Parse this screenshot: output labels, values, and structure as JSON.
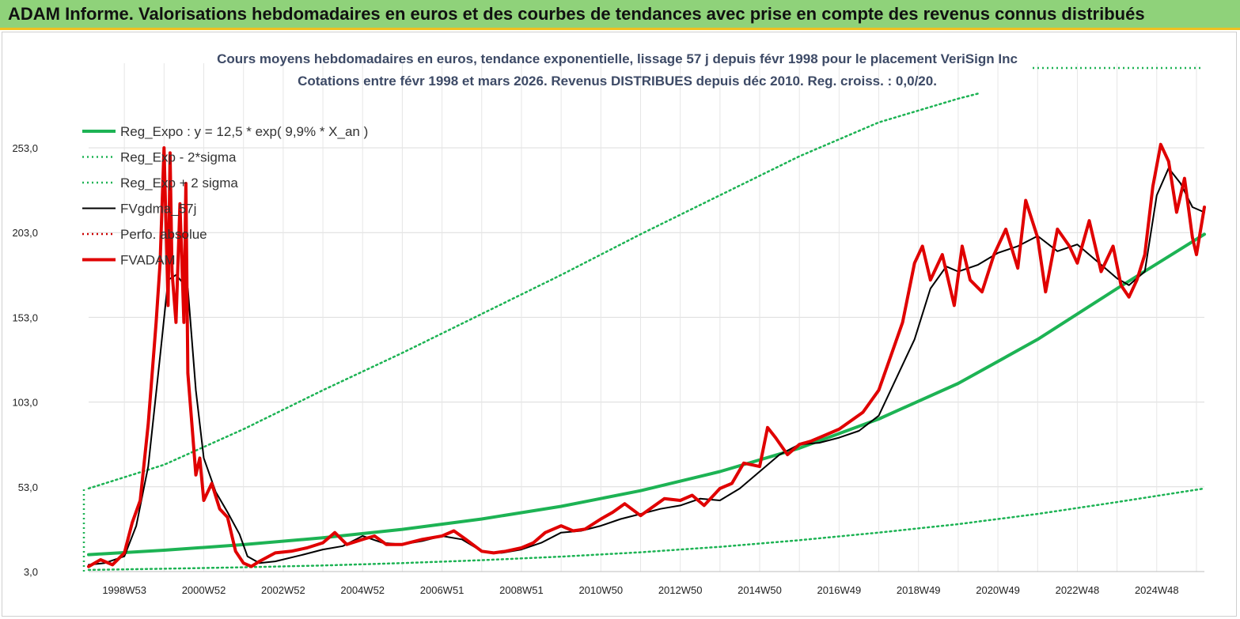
{
  "header": {
    "title": "ADAM Informe. Valorisations hebdomadaires en euros et des courbes de tendances avec prise en compte des revenus connus distribués"
  },
  "chart_data": {
    "type": "line",
    "title": "Cours moyens hebdomadaires en euros, tendance exponentielle, lissage 57 j depuis févr 1998 pour le placement VeriSign Inc",
    "subtitle": "Cotations entre févr 1998 et mars 2026. Revenus DISTRIBUES depuis déc 2010. Reg. croiss. : 0,0/20.",
    "xlabel": "",
    "ylabel": "",
    "ylim": [
      3,
      283
    ],
    "xlim": [
      1998.1,
      2026.2
    ],
    "grid": true,
    "legend_position": "top-left",
    "y_ticks": [
      "3,0",
      "53,0",
      "103,0",
      "153,0",
      "203,0",
      "253,0"
    ],
    "y_tick_values": [
      3,
      53,
      103,
      153,
      203,
      253
    ],
    "x_ticks": [
      "1998W53",
      "2000W52",
      "2002W52",
      "2004W52",
      "2006W51",
      "2008W51",
      "2010W50",
      "2012W50",
      "2014W50",
      "2016W49",
      "2018W49",
      "2020W49",
      "2022W48",
      "2024W48"
    ],
    "x_tick_values": [
      1999.0,
      2001.0,
      2003.0,
      2005.0,
      2007.0,
      2009.0,
      2011.0,
      2013.0,
      2015.0,
      2017.0,
      2019.0,
      2021.0,
      2023.0,
      2025.0
    ],
    "series": [
      {
        "name": "Reg_Expo : y = 12,5 * exp( 9,9% *  X_an )",
        "color": "#1db354",
        "style": "solid-thick",
        "x": [
          1998.1,
          2000,
          2002,
          2004,
          2006,
          2008,
          2010,
          2012,
          2014,
          2016,
          2018,
          2020,
          2022,
          2024,
          2026.2
        ],
        "values": [
          13.0,
          15.6,
          18.9,
          22.9,
          27.9,
          34.0,
          41.5,
          50.7,
          62.0,
          75.8,
          93.0,
          114.0,
          140.0,
          170.0,
          202.0
        ]
      },
      {
        "name": "Reg_Exp - 2*sigma",
        "color": "#1db354",
        "style": "dotted",
        "x": [
          1998.1,
          2000,
          2002,
          2004,
          2006,
          2008,
          2010,
          2012,
          2014,
          2016,
          2018,
          2020,
          2022,
          2024,
          2026.2
        ],
        "values": [
          4.0,
          4.7,
          5.5,
          6.6,
          8.0,
          9.7,
          11.8,
          14.4,
          17.6,
          21.5,
          26.0,
          31.0,
          37.0,
          44.0,
          52.0
        ]
      },
      {
        "name": "Reg_Exp + 2 sigma",
        "color": "#1db354",
        "style": "dotted",
        "x": [
          1998.1,
          2000,
          2002,
          2004,
          2006,
          2008,
          2010,
          2012,
          2014,
          2016,
          2018,
          2020,
          2020.5
        ],
        "values": [
          52.0,
          66.0,
          87.0,
          110.0,
          132.0,
          155.0,
          178.0,
          202.0,
          225.0,
          248.0,
          268.0,
          282.0,
          285.0
        ]
      },
      {
        "name": "FVgdma_57j",
        "color": "#000000",
        "style": "solid",
        "x": [
          1998.1,
          1998.5,
          1999.0,
          1999.3,
          1999.6,
          1999.9,
          2000.1,
          2000.3,
          2000.6,
          2000.8,
          2001.0,
          2001.3,
          2001.6,
          2001.9,
          2002.1,
          2002.4,
          2002.8,
          2003.5,
          2004.0,
          2004.5,
          2005.0,
          2005.5,
          2006.0,
          2006.5,
          2007.0,
          2007.5,
          2008.0,
          2008.5,
          2009.0,
          2009.5,
          2010.0,
          2010.5,
          2011.0,
          2011.5,
          2012.0,
          2012.5,
          2013.0,
          2013.5,
          2014.0,
          2014.5,
          2015.0,
          2015.5,
          2016.0,
          2016.5,
          2017.0,
          2017.5,
          2018.0,
          2018.5,
          2018.9,
          2019.3,
          2019.7,
          2020.0,
          2020.5,
          2021.0,
          2021.5,
          2022.0,
          2022.5,
          2023.0,
          2023.5,
          2024.0,
          2024.3,
          2024.7,
          2025.0,
          2025.3,
          2025.6,
          2025.9,
          2026.2
        ],
        "values": [
          7,
          8,
          12,
          30,
          65,
          130,
          175,
          178,
          170,
          110,
          70,
          50,
          38,
          25,
          12,
          8,
          9,
          13,
          16,
          18,
          24,
          20,
          19,
          21,
          24,
          22,
          15,
          14,
          16,
          20,
          26,
          27,
          30,
          34,
          37,
          40,
          42,
          46,
          45,
          52,
          62,
          72,
          78,
          79,
          82,
          86,
          95,
          120,
          140,
          170,
          183,
          180,
          184,
          191,
          195,
          201,
          192,
          196,
          186,
          176,
          172,
          180,
          225,
          241,
          232,
          218,
          215
        ]
      },
      {
        "name": "Perfo. absolue",
        "color": "#cc0000",
        "style": "dotted",
        "x": [],
        "values": []
      },
      {
        "name": "FVADAM",
        "color": "#e00000",
        "style": "solid-thick",
        "x": [
          1998.1,
          1998.4,
          1998.7,
          1999.0,
          1999.2,
          1999.4,
          1999.6,
          1999.8,
          1999.9,
          2000.0,
          2000.1,
          2000.15,
          2000.2,
          2000.3,
          2000.4,
          2000.5,
          2000.55,
          2000.6,
          2000.7,
          2000.8,
          2000.9,
          2001.0,
          2001.2,
          2001.4,
          2001.6,
          2001.8,
          2002.0,
          2002.2,
          2002.4,
          2002.8,
          2003.2,
          2003.6,
          2004.0,
          2004.3,
          2004.6,
          2005.0,
          2005.3,
          2005.6,
          2006.0,
          2006.5,
          2007.0,
          2007.3,
          2007.6,
          2008.0,
          2008.3,
          2008.6,
          2009.0,
          2009.3,
          2009.6,
          2010.0,
          2010.3,
          2010.6,
          2011.0,
          2011.3,
          2011.6,
          2012.0,
          2012.3,
          2012.6,
          2013.0,
          2013.3,
          2013.6,
          2014.0,
          2014.3,
          2014.6,
          2015.0,
          2015.2,
          2015.4,
          2015.7,
          2016.0,
          2016.3,
          2016.6,
          2017.0,
          2017.3,
          2017.6,
          2018.0,
          2018.3,
          2018.6,
          2018.9,
          2019.1,
          2019.3,
          2019.6,
          2019.9,
          2020.1,
          2020.3,
          2020.6,
          2020.9,
          2021.2,
          2021.5,
          2021.7,
          2022.0,
          2022.2,
          2022.5,
          2022.8,
          2023.0,
          2023.3,
          2023.6,
          2023.9,
          2024.1,
          2024.3,
          2024.5,
          2024.7,
          2024.9,
          2025.1,
          2025.3,
          2025.5,
          2025.7,
          2025.9,
          2026.0,
          2026.2
        ],
        "values": [
          6,
          10,
          7,
          14,
          32,
          45,
          90,
          150,
          185,
          253,
          160,
          250,
          180,
          150,
          220,
          150,
          232,
          120,
          90,
          60,
          70,
          45,
          55,
          40,
          35,
          15,
          8,
          6,
          9,
          14,
          15,
          17,
          20,
          26,
          19,
          22,
          24,
          19,
          19,
          22,
          24,
          27,
          22,
          15,
          14,
          15,
          17,
          20,
          26,
          30,
          27,
          28,
          34,
          38,
          43,
          36,
          41,
          46,
          45,
          48,
          42,
          52,
          55,
          67,
          65,
          88,
          82,
          72,
          78,
          80,
          83,
          87,
          92,
          97,
          110,
          130,
          150,
          185,
          195,
          175,
          190,
          160,
          195,
          175,
          168,
          190,
          205,
          182,
          222,
          200,
          168,
          205,
          195,
          185,
          210,
          180,
          195,
          172,
          165,
          175,
          190,
          230,
          255,
          245,
          215,
          235,
          200,
          190,
          218
        ]
      }
    ]
  }
}
